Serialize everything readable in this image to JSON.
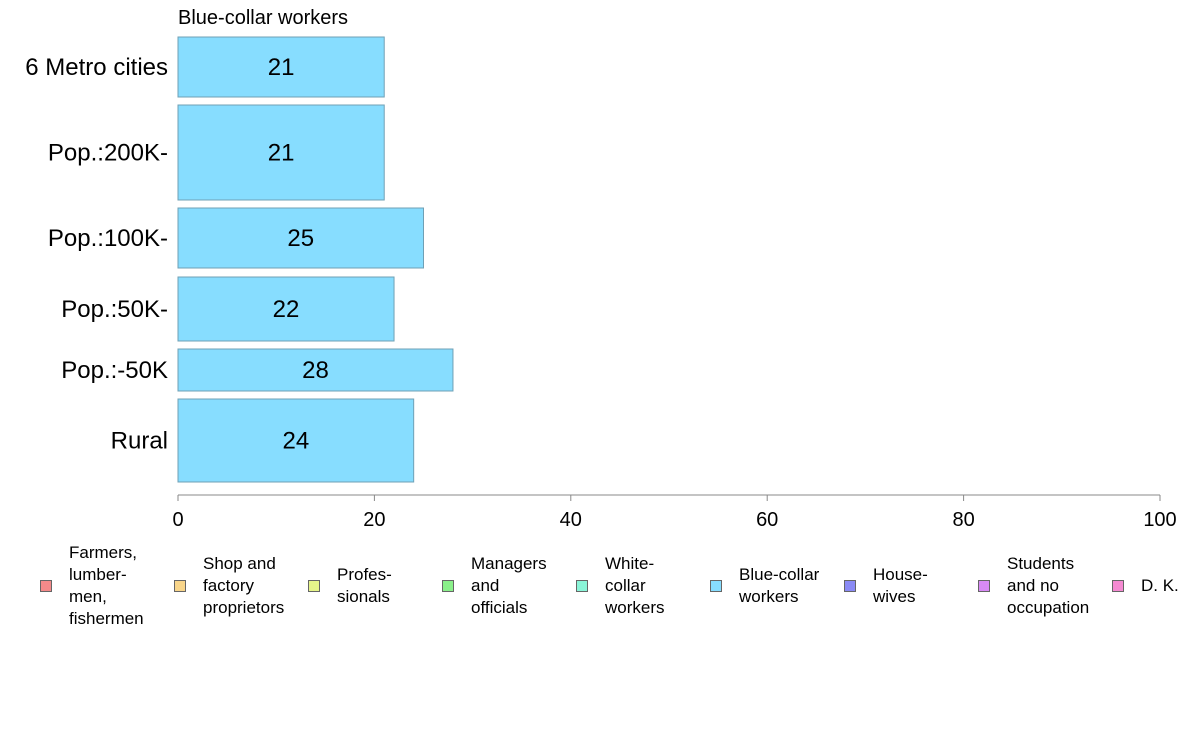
{
  "chart_data": {
    "type": "bar",
    "orientation": "horizontal",
    "title": "Blue-collar workers",
    "categories": [
      "6 Metro cities",
      "Pop.:200K-",
      "Pop.:100K-",
      "Pop.:50K-",
      "Pop.:-50K",
      "Rural"
    ],
    "values": [
      21,
      21,
      25,
      22,
      28,
      24
    ],
    "value_labels": [
      "21",
      "21",
      "25",
      "22",
      "28",
      "24"
    ],
    "xlim": [
      0,
      100
    ],
    "x_ticks": [
      "0",
      "20",
      "40",
      "60",
      "80",
      "100"
    ],
    "bar_color": "#87DDFF",
    "bar_border_color": "#6FA0B5",
    "grid": false,
    "legend_placement": "bottom",
    "legend": [
      {
        "label": "Farmers,\nlumber-\nmen,\nfishermen",
        "color": "#F48A8A"
      },
      {
        "label": "Shop and\nfactory\nproprietors",
        "color": "#F8D58A"
      },
      {
        "label": "Profes-\nsionals",
        "color": "#E6F58A"
      },
      {
        "label": "Managers\nand\nofficials",
        "color": "#8AF08A"
      },
      {
        "label": "White-\ncollar\nworkers",
        "color": "#8AF5D8"
      },
      {
        "label": "Blue-collar\nworkers",
        "color": "#87DDFF"
      },
      {
        "label": "House-\nwives",
        "color": "#8A8AF5"
      },
      {
        "label": "Students\nand no\noccupation",
        "color": "#D88AF5"
      },
      {
        "label": "D. K.",
        "color": "#F58AD2"
      }
    ]
  }
}
